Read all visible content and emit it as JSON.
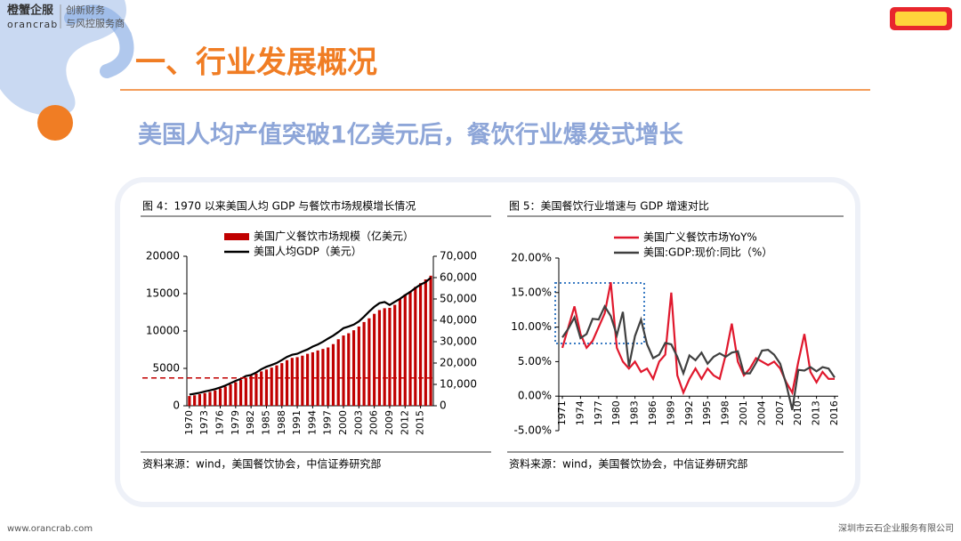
{
  "brand": {
    "cn": "橙蟹企服",
    "en": "orancrab",
    "slogan1": "创新财务",
    "slogan2": "与风控服务商"
  },
  "title": "一、行业发展概况",
  "subtitle": "美国人均产值突破1亿美元后，餐饮行业爆发式增长",
  "footer": {
    "url": "www.orancrab.com",
    "company": "深圳市云石企业服务有限公司"
  },
  "chart_data": [
    {
      "type": "combo",
      "title": "图 4：1970 以来美国人均 GDP 与餐饮市场规模增长情况",
      "source": "资料来源：wind，美国餐饮协会，中信证券研究部",
      "x": [
        1970,
        1971,
        1972,
        1973,
        1974,
        1975,
        1976,
        1977,
        1978,
        1979,
        1980,
        1981,
        1982,
        1983,
        1984,
        1985,
        1986,
        1987,
        1988,
        1989,
        1990,
        1991,
        1992,
        1993,
        1994,
        1995,
        1996,
        1997,
        1998,
        1999,
        2000,
        2001,
        2002,
        2003,
        2004,
        2005,
        2006,
        2007,
        2008,
        2009,
        2010,
        2011,
        2012,
        2013,
        2014,
        2015,
        2016,
        2017
      ],
      "xlim": [
        1969.5,
        2017.5
      ],
      "xticks": [
        1970,
        1973,
        1976,
        1979,
        1982,
        1985,
        1988,
        1991,
        1994,
        1997,
        2000,
        2003,
        2006,
        2009,
        2012,
        2015
      ],
      "ylim": [
        0,
        20000
      ],
      "yticks": [
        0,
        5000,
        10000,
        15000,
        20000
      ],
      "y2lim": [
        0,
        70000
      ],
      "y2ticks": [
        0,
        {
          "value": 10000,
          "label": "10,000"
        },
        {
          "value": 20000,
          "label": "20,000"
        },
        {
          "value": 30000,
          "label": "30,000"
        },
        {
          "value": 40000,
          "label": "40,000"
        },
        {
          "value": 50000,
          "label": "50,000"
        },
        {
          "value": 60000,
          "label": "60,000"
        },
        {
          "value": 70000,
          "label": "70,000"
        }
      ],
      "reference_line": {
        "value": 13000,
        "axis": "y2",
        "color": "#c00000"
      },
      "series": [
        {
          "name": "美国广义餐饮市场规模（亿美元）",
          "type": "bar",
          "color": "#c00000",
          "values": [
            1300,
            1400,
            1550,
            1700,
            1850,
            2050,
            2300,
            2550,
            2850,
            3150,
            3450,
            3750,
            4000,
            4300,
            4600,
            4850,
            5100,
            5400,
            5700,
            6100,
            6400,
            6500,
            6700,
            6950,
            7150,
            7400,
            7600,
            7800,
            8250,
            8900,
            9400,
            9700,
            10100,
            10600,
            11200,
            11700,
            12300,
            12800,
            13050,
            13100,
            13500,
            14300,
            14900,
            15300,
            15900,
            16400,
            16900,
            17400
          ]
        },
        {
          "name": "美国人均GDP（美元）",
          "type": "line",
          "axis": "y2",
          "color": "#000000",
          "values": [
            5234,
            5609,
            6094,
            6726,
            7226,
            7801,
            8592,
            9453,
            10565,
            11674,
            12575,
            13976,
            14434,
            15544,
            17121,
            18237,
            19071,
            20039,
            21417,
            22857,
            23889,
            24342,
            25419,
            26387,
            27695,
            28691,
            29968,
            31459,
            32854,
            34515,
            36330,
            37134,
            37998,
            39490,
            41725,
            44115,
            46302,
            48050,
            48570,
            47195,
            48651,
            50066,
            51784,
            53291,
            55124,
            56763,
            57867,
            59958
          ]
        }
      ]
    },
    {
      "type": "line",
      "title": "图 5：美国餐饮行业增速与 GDP 增速对比",
      "source": "资料来源：wind，美国餐饮协会，中信证券研究部",
      "x": [
        1971,
        1972,
        1973,
        1974,
        1975,
        1976,
        1977,
        1978,
        1979,
        1980,
        1981,
        1982,
        1983,
        1984,
        1985,
        1986,
        1987,
        1988,
        1989,
        1990,
        1991,
        1992,
        1993,
        1994,
        1995,
        1996,
        1997,
        1998,
        1999,
        2000,
        2001,
        2002,
        2003,
        2004,
        2005,
        2006,
        2007,
        2008,
        2009,
        2010,
        2011,
        2012,
        2013,
        2014,
        2015,
        2016
      ],
      "xlim": [
        1971,
        2016
      ],
      "xticks": [
        1971,
        1974,
        1977,
        1980,
        1983,
        1986,
        1989,
        1992,
        1995,
        1998,
        2001,
        2004,
        2007,
        2010,
        2013,
        2016
      ],
      "ylim": [
        -5,
        20
      ],
      "yticks": [
        {
          "value": -5,
          "label": "-5.00%"
        },
        {
          "value": 0,
          "label": "0.00%"
        },
        {
          "value": 5,
          "label": "5.00%"
        },
        {
          "value": 10,
          "label": "10.00%"
        },
        {
          "value": 15,
          "label": "15.00%"
        },
        {
          "value": 20,
          "label": "20.00%"
        }
      ],
      "series": [
        {
          "name": "美国广义餐饮市场YoY%",
          "type": "line",
          "color": "#e0182d",
          "values": [
            7,
            10,
            13,
            9,
            7,
            8,
            10,
            12,
            16.5,
            7,
            5,
            4,
            5,
            3.5,
            4,
            2.5,
            5,
            6,
            15,
            3,
            0.5,
            2.5,
            4,
            2.5,
            4,
            3,
            2.5,
            6,
            10.5,
            5,
            3,
            4,
            5.5,
            5,
            4.5,
            5,
            4,
            2,
            0.5,
            5,
            9,
            3.5,
            2,
            3.5,
            2.5,
            2.5
          ]
        },
        {
          "name": "美国:GDP:现价:同比（%）",
          "type": "line",
          "color": "#404040",
          "values": [
            8.5,
            9.8,
            11.4,
            8.4,
            9,
            11.2,
            11.1,
            13,
            11.6,
            8.8,
            12.2,
            4.3,
            8.7,
            11.1,
            7.5,
            5.5,
            6,
            7.7,
            7.5,
            5.7,
            3.3,
            5.9,
            5.2,
            6.3,
            4.7,
            5.7,
            6.2,
            5.7,
            6.3,
            6.5,
            3.3,
            3.3,
            4.8,
            6.6,
            6.7,
            6,
            4.7,
            1.7,
            -2,
            3.8,
            3.7,
            4.2,
            3.6,
            4.2,
            4,
            2.7
          ]
        }
      ]
    }
  ]
}
